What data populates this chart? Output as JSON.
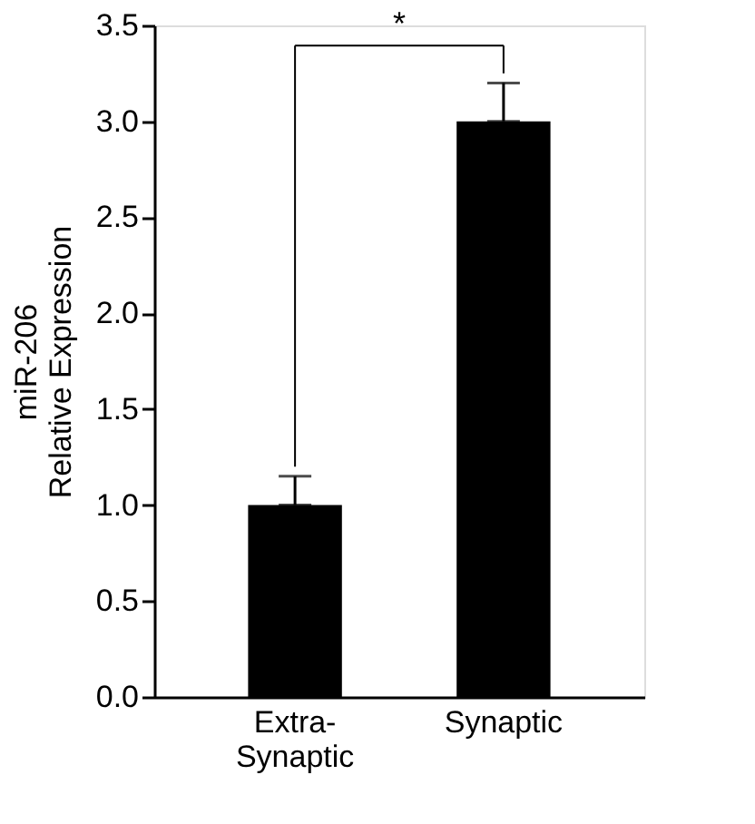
{
  "chart_data": {
    "type": "bar",
    "ylabel": "miR-206\nRelative Expression",
    "categories": [
      "Extra-\nSynaptic",
      "Synaptic"
    ],
    "values": [
      1.0,
      3.0
    ],
    "errors": [
      [
        1.0,
        1.15
      ],
      [
        3.0,
        3.2
      ]
    ],
    "color": "#000000",
    "ylim": [
      0,
      3.5
    ],
    "yticks": [
      {
        "value": 0,
        "label": "0.0"
      },
      0.5,
      {
        "value": 1,
        "label": "1.0"
      },
      1.5,
      {
        "value": 2,
        "label": "2.0"
      },
      2.5,
      {
        "value": 3,
        "label": "3.0"
      },
      3.5
    ],
    "annotations": [
      "*"
    ],
    "grid": false
  }
}
